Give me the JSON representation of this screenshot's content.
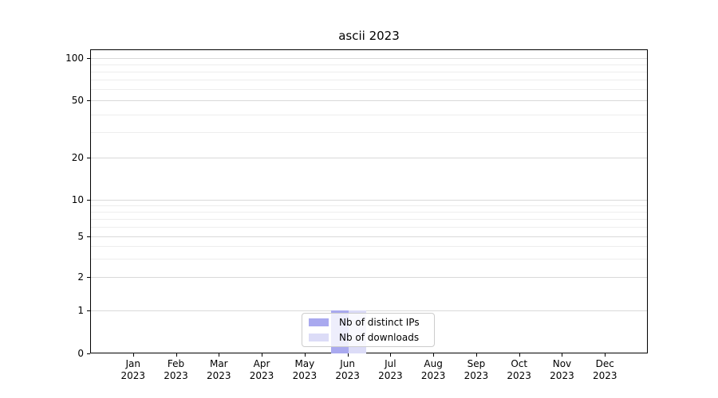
{
  "chart_data": {
    "type": "bar",
    "title": "ascii 2023",
    "categories": [
      "Jan",
      "Feb",
      "Mar",
      "Apr",
      "May",
      "Jun",
      "Jul",
      "Aug",
      "Sep",
      "Oct",
      "Nov",
      "Dec"
    ],
    "category_year": "2023",
    "series": [
      {
        "name": "Nb of distinct IPs",
        "color": "#a9a9ef",
        "values": [
          0,
          0,
          0,
          0,
          0,
          1,
          0,
          0,
          0,
          0,
          0,
          0
        ]
      },
      {
        "name": "Nb of downloads",
        "color": "#dcdcf7",
        "values": [
          0,
          0,
          0,
          0,
          0,
          1,
          0,
          0,
          0,
          0,
          0,
          0
        ]
      }
    ],
    "yscale": "symlog",
    "yticks": [
      0,
      1,
      2,
      5,
      10,
      20,
      50,
      100
    ],
    "ylim": [
      0,
      110
    ],
    "xlabel": "",
    "ylabel": "",
    "grid": "horizontal major and minor gridlines",
    "legend_position": "lower center"
  }
}
